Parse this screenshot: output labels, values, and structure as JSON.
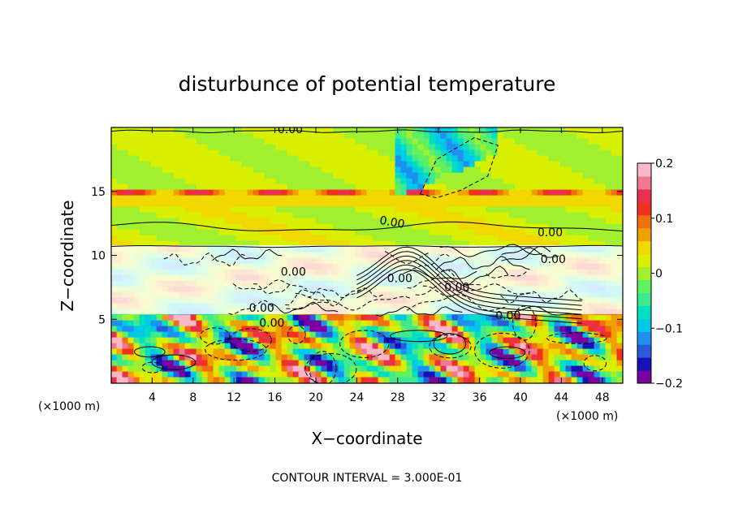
{
  "chart_data": {
    "type": "heatmap",
    "title": "disturbunce of potential temperature",
    "xlabel": "X−coordinate",
    "ylabel": "Z−coordinate",
    "x_unit_left": "(×1000 m)",
    "x_unit_right": "(×1000 m)",
    "x_ticks": [
      4,
      8,
      12,
      16,
      20,
      24,
      28,
      32,
      36,
      40,
      44,
      48
    ],
    "y_ticks": [
      5,
      10,
      15
    ],
    "xlim": [
      0,
      50
    ],
    "ylim": [
      0,
      20
    ],
    "colorbar": {
      "ticks": [
        "0.2",
        "0.1",
        "0",
        "−0.1",
        "−0.2"
      ],
      "range": [
        -0.2,
        0.2
      ],
      "colors": [
        "#7a00a0",
        "#1a10b8",
        "#2a5ad8",
        "#2090f0",
        "#00c8e8",
        "#00e0c0",
        "#40e890",
        "#60f060",
        "#a0f030",
        "#d8f000",
        "#f0d800",
        "#f0a000",
        "#f07010",
        "#f03020",
        "#e83050",
        "#f07890",
        "#f8b8c8"
      ]
    },
    "contour_labels": [
      "0.00",
      "0.00",
      "0.00",
      "0.00",
      "0.00",
      "0.00",
      "0.00",
      "0.00",
      "0.00",
      "0.00"
    ],
    "footer": "CONTOUR INTERVAL = 3.000E-01"
  }
}
